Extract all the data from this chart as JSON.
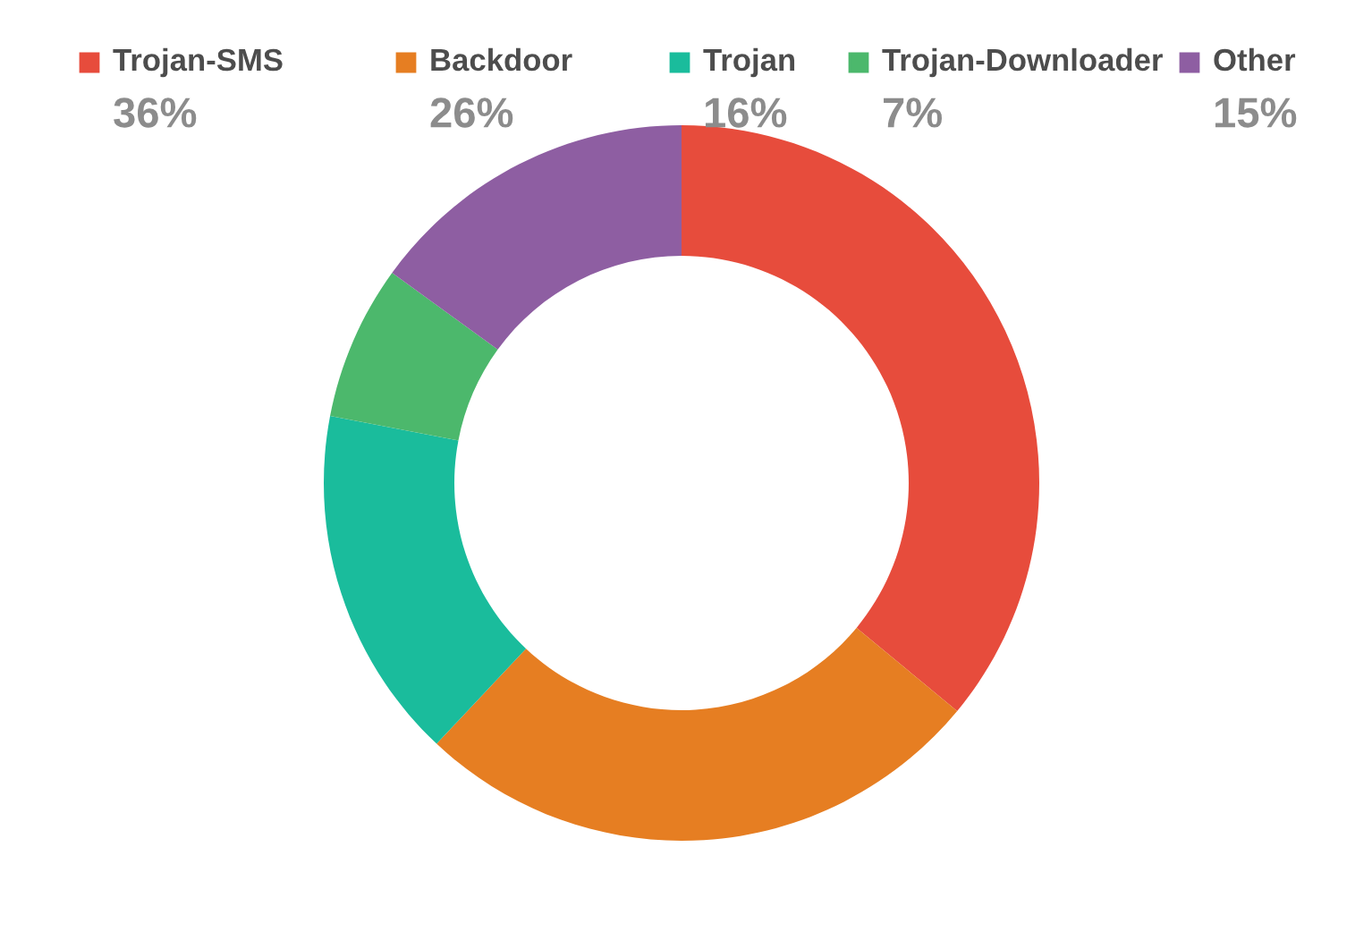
{
  "chart_data": {
    "type": "donut",
    "categories": [
      "Trojan-SMS",
      "Backdoor",
      "Trojan",
      "Trojan-Downloader",
      "Other"
    ],
    "values": [
      36,
      26,
      16,
      7,
      15
    ],
    "value_labels": [
      "36%",
      "26%",
      "16%",
      "7%",
      "15%"
    ],
    "colors": [
      "#e74c3c",
      "#e67e22",
      "#1abc9c",
      "#4cb86c",
      "#8e5ea2"
    ],
    "legend": "top"
  }
}
